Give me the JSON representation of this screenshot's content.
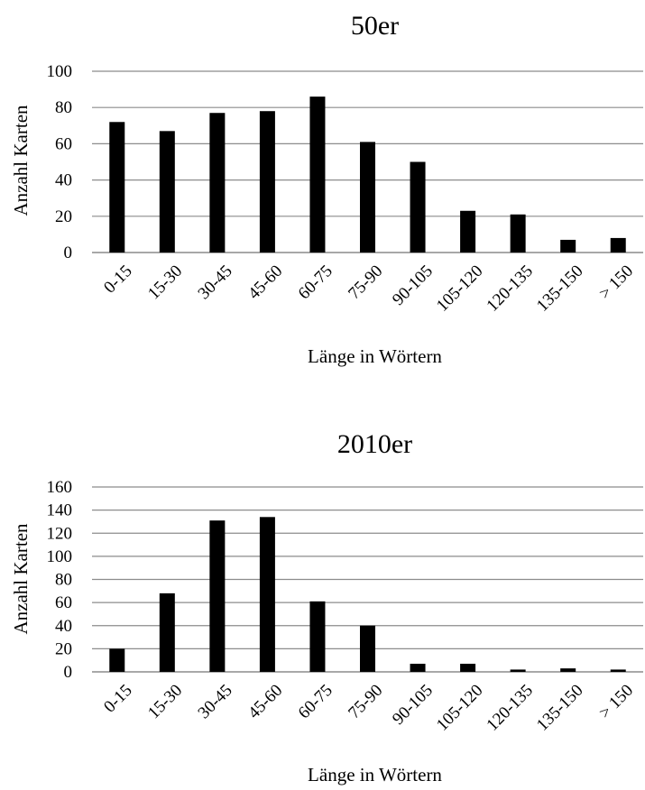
{
  "chart_data": [
    {
      "type": "bar",
      "title": "50er",
      "xlabel": "Länge in Wörtern",
      "ylabel": "Anzahl Karten",
      "categories": [
        "0-15",
        "15-30",
        "30-45",
        "45-60",
        "60-75",
        "75-90",
        "90-105",
        "105-120",
        "120-135",
        "135-150",
        "> 150"
      ],
      "values": [
        72,
        67,
        77,
        78,
        86,
        61,
        50,
        23,
        21,
        7,
        8
      ],
      "ylim": [
        0,
        100
      ],
      "yticks": [
        0,
        20,
        40,
        60,
        80,
        100
      ],
      "grid": true,
      "bar_color": "#000000"
    },
    {
      "type": "bar",
      "title": "2010er",
      "xlabel": "Länge in Wörtern",
      "ylabel": "Anzahl Karten",
      "categories": [
        "0-15",
        "15-30",
        "30-45",
        "45-60",
        "60-75",
        "75-90",
        "90-105",
        "105-120",
        "120-135",
        "135-150",
        "> 150"
      ],
      "values": [
        20,
        68,
        131,
        134,
        61,
        40,
        7,
        7,
        2,
        3,
        2
      ],
      "ylim": [
        0,
        160
      ],
      "yticks": [
        0,
        20,
        40,
        60,
        80,
        100,
        120,
        140,
        160
      ],
      "grid": true,
      "bar_color": "#000000"
    }
  ]
}
